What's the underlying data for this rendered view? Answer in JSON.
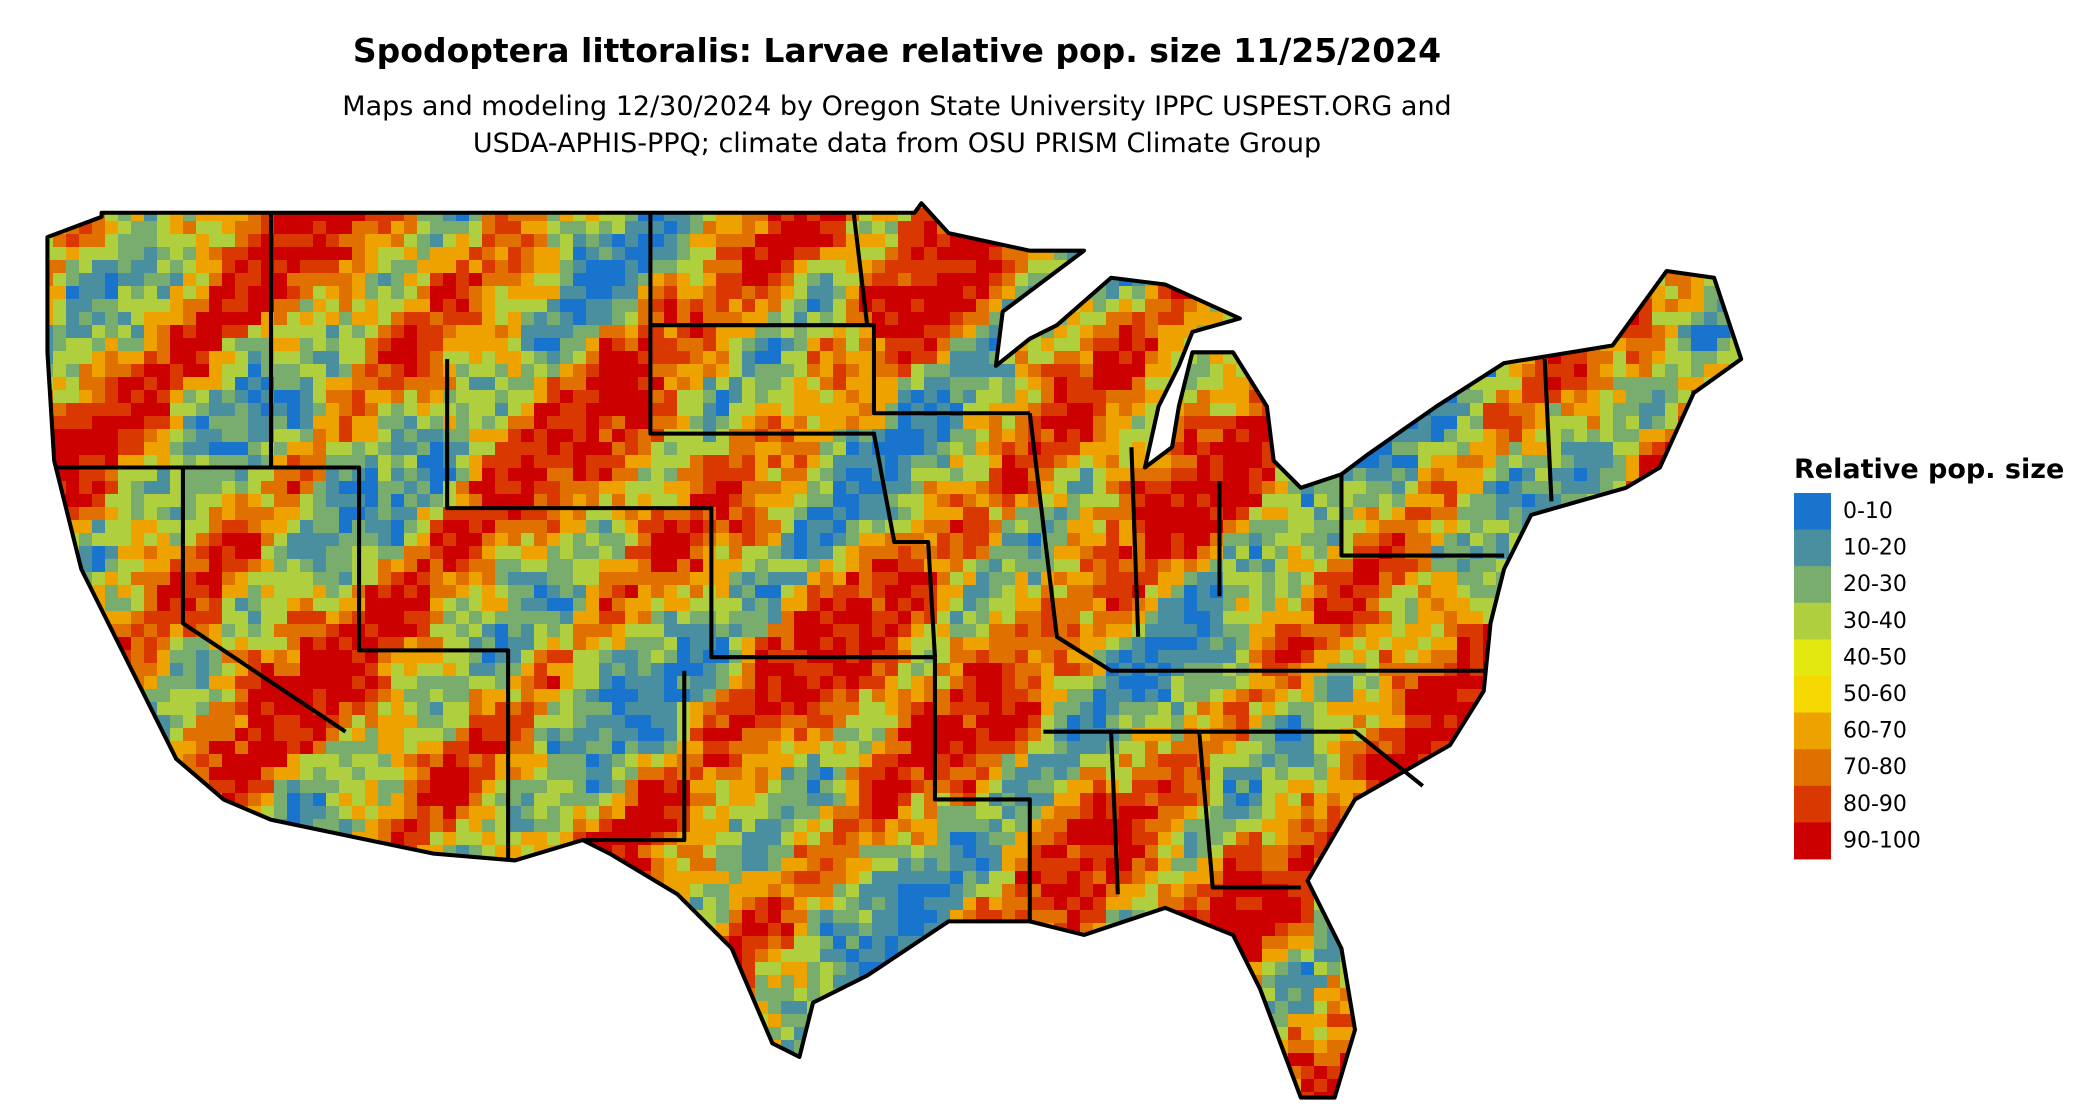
{
  "header": {
    "title": "Spodoptera littoralis: Larvae relative pop. size 11/25/2024",
    "subtitle_lines": [
      "Maps and modeling 12/30/2024 by Oregon State University IPPC USPEST.ORG and",
      "USDA-APHIS-PPQ; climate data from OSU PRISM Climate Group"
    ]
  },
  "legend": {
    "title": "Relative pop. size",
    "items": [
      {
        "label": "0-10",
        "color": "#1874cd"
      },
      {
        "label": "10-20",
        "color": "#4a8fa0"
      },
      {
        "label": "20-30",
        "color": "#79ad6e"
      },
      {
        "label": "30-40",
        "color": "#b0cf3e"
      },
      {
        "label": "40-50",
        "color": "#e3e910"
      },
      {
        "label": "50-60",
        "color": "#f5d800"
      },
      {
        "label": "60-70",
        "color": "#eea200"
      },
      {
        "label": "70-80",
        "color": "#e07000"
      },
      {
        "label": "80-90",
        "color": "#d93800"
      },
      {
        "label": "90-100",
        "color": "#cd0000"
      }
    ]
  }
}
